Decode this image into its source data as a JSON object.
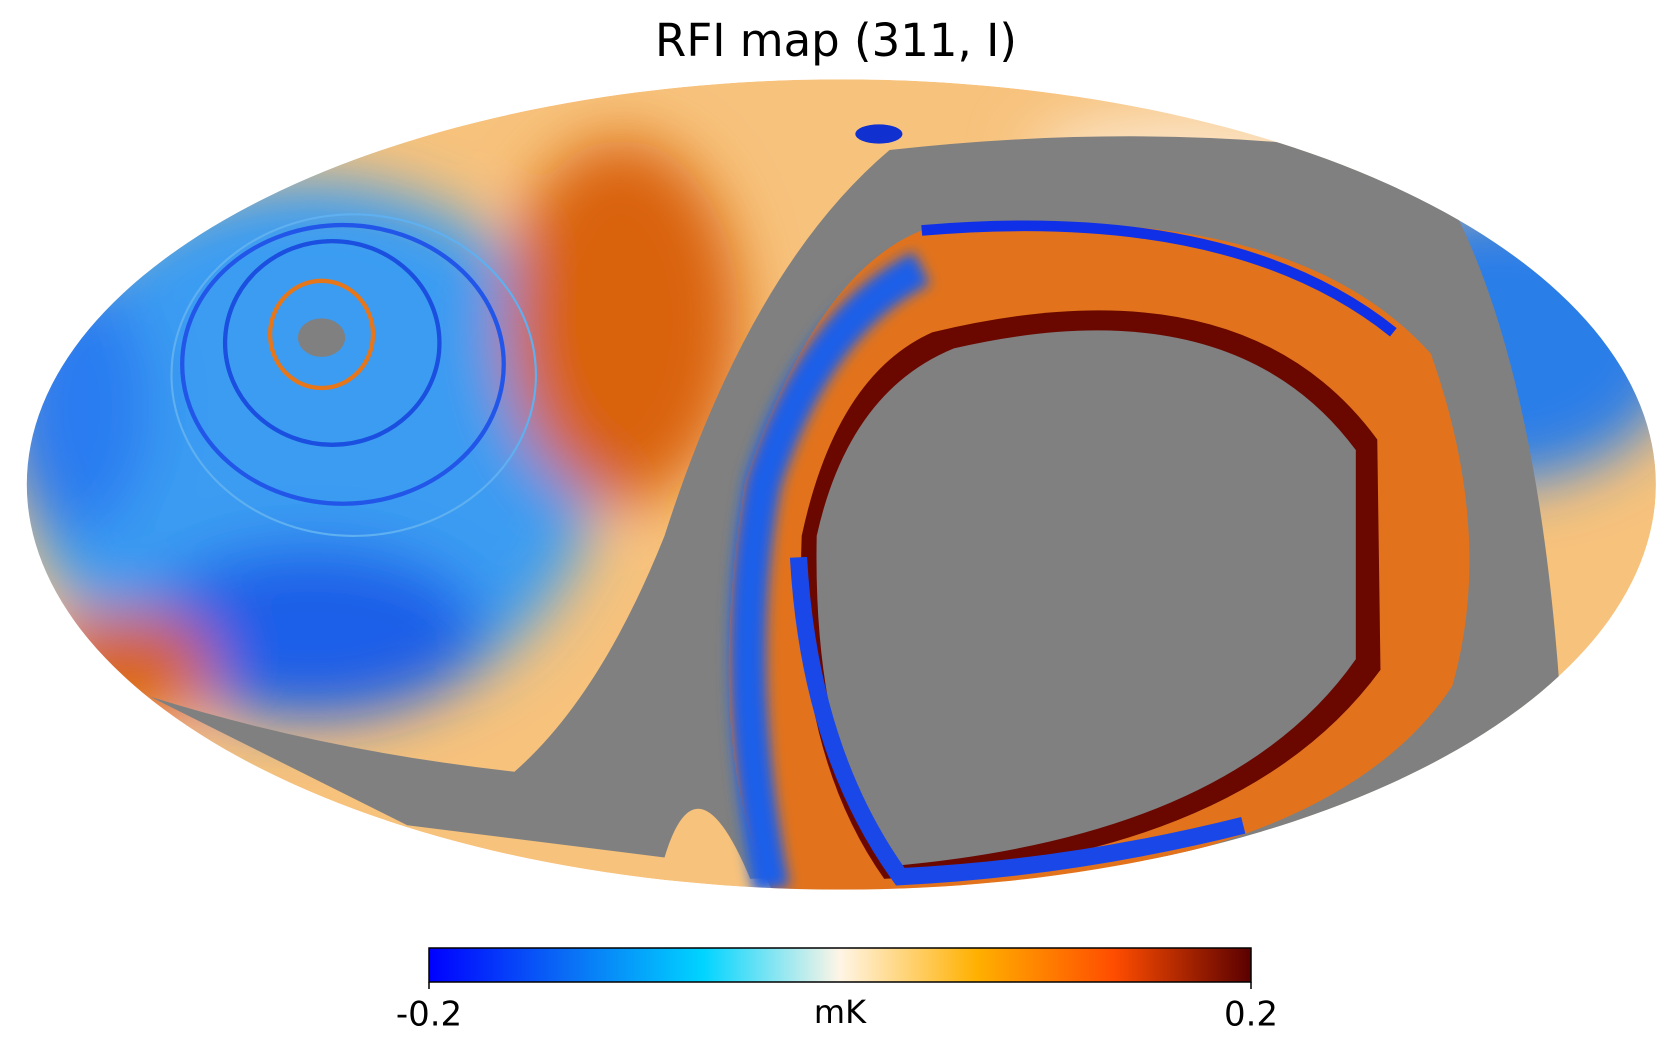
{
  "chart_data": {
    "type": "mollweide_map",
    "title": "RFI map (311, I)",
    "colorbar": {
      "label": "mK",
      "lim": [
        -0.2,
        0.2
      ],
      "ticks": [
        -0.2,
        0.2
      ],
      "colormap": [
        "#0000ff",
        "#0a6cf5",
        "#00d4ff",
        "#fff5e6",
        "#ffb000",
        "#ff4d00",
        "#5a0000"
      ]
    }
  }
}
